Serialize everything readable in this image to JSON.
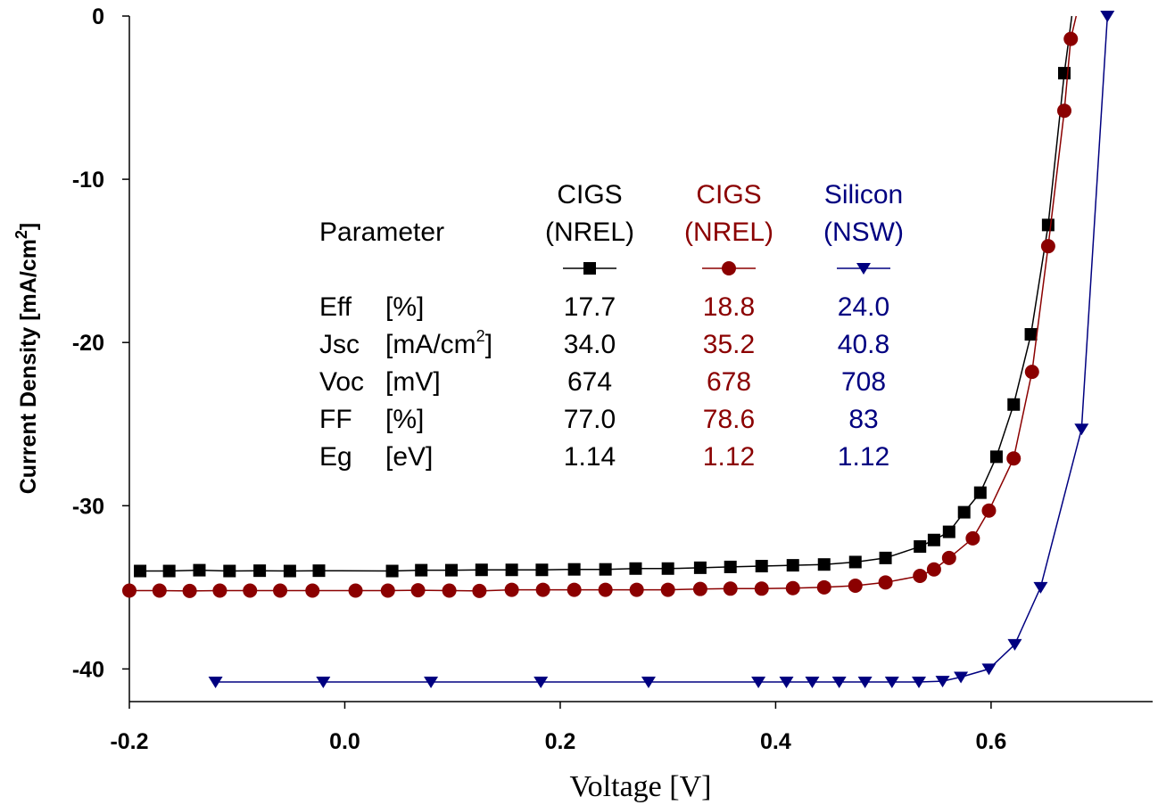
{
  "chart_data": {
    "type": "line",
    "title": "",
    "xlabel": "Voltage [V]",
    "ylabel_main": "Current Density [mA/cm",
    "ylabel_sup": "2",
    "ylabel_end": "]",
    "xlim": [
      -0.2,
      0.75
    ],
    "ylim": [
      -42,
      0
    ],
    "x_ticks": [
      -0.2,
      0.0,
      0.2,
      0.4,
      0.6
    ],
    "x_tick_labels": [
      "-0.2",
      "0.0",
      "0.2",
      "0.4",
      "0.6"
    ],
    "y_ticks": [
      0,
      -10,
      -20,
      -30,
      -40
    ],
    "y_tick_labels": [
      "0",
      "-10",
      "-20",
      "-30",
      "-40"
    ],
    "grid": false,
    "series": [
      {
        "color": "#000000",
        "marker": "square",
        "x": [
          -0.19,
          -0.163,
          -0.135,
          -0.107,
          -0.079,
          -0.051,
          -0.024,
          0.044,
          0.071,
          0.099,
          0.127,
          0.155,
          0.183,
          0.213,
          0.242,
          0.27,
          0.3,
          0.33,
          0.358,
          0.387,
          0.416,
          0.445,
          0.474,
          0.502,
          0.534,
          0.547,
          0.561,
          0.575,
          0.59,
          0.605,
          0.621,
          0.637,
          0.653,
          0.668,
          0.675
        ],
        "y": [
          -34.0,
          -34.0,
          -33.95,
          -34.0,
          -33.98,
          -34.0,
          -33.98,
          -34.0,
          -33.95,
          -33.95,
          -33.93,
          -33.93,
          -33.93,
          -33.9,
          -33.9,
          -33.85,
          -33.85,
          -33.8,
          -33.75,
          -33.7,
          -33.65,
          -33.6,
          -33.45,
          -33.2,
          -32.5,
          -32.1,
          -31.6,
          -30.4,
          -29.2,
          -27.0,
          -23.8,
          -19.5,
          -12.8,
          -3.5,
          0
        ]
      },
      {
        "color": "#8b0000",
        "marker": "circle",
        "x": [
          -0.2,
          -0.172,
          -0.144,
          -0.116,
          -0.088,
          -0.06,
          -0.03,
          0.01,
          0.04,
          0.068,
          0.097,
          0.125,
          0.155,
          0.184,
          0.213,
          0.242,
          0.271,
          0.3,
          0.33,
          0.358,
          0.387,
          0.416,
          0.445,
          0.474,
          0.502,
          0.534,
          0.547,
          0.561,
          0.583,
          0.598,
          0.621,
          0.638,
          0.653,
          0.668,
          0.674,
          0.679
        ],
        "y": [
          -35.2,
          -35.2,
          -35.22,
          -35.2,
          -35.2,
          -35.2,
          -35.2,
          -35.2,
          -35.2,
          -35.18,
          -35.2,
          -35.22,
          -35.15,
          -35.15,
          -35.15,
          -35.15,
          -35.15,
          -35.15,
          -35.1,
          -35.08,
          -35.08,
          -35.05,
          -35.0,
          -34.9,
          -34.7,
          -34.3,
          -33.9,
          -33.2,
          -32.0,
          -30.3,
          -27.1,
          -21.8,
          -14.1,
          -5.8,
          -1.4,
          0
        ]
      },
      {
        "color": "#000080",
        "marker": "triangle-down",
        "x": [
          -0.12,
          -0.02,
          0.08,
          0.182,
          0.282,
          0.384,
          0.41,
          0.434,
          0.459,
          0.483,
          0.508,
          0.533,
          0.555,
          0.572,
          0.598,
          0.622,
          0.646,
          0.684,
          0.708
        ],
        "y": [
          -40.8,
          -40.8,
          -40.8,
          -40.8,
          -40.8,
          -40.8,
          -40.8,
          -40.8,
          -40.8,
          -40.8,
          -40.8,
          -40.8,
          -40.75,
          -40.5,
          -40.0,
          -38.5,
          -35.0,
          -25.3,
          0
        ]
      }
    ],
    "legend_table": {
      "param_header": "Parameter",
      "columns": [
        {
          "line1": "CIGS",
          "line2": "(NREL)",
          "color": "#000000",
          "marker": "square",
          "values": [
            "17.7",
            "34.0",
            "674",
            "77.0",
            "1.14"
          ]
        },
        {
          "line1": "CIGS",
          "line2": "(NREL)",
          "color": "#8b0000",
          "marker": "circle",
          "values": [
            "18.8",
            "35.2",
            "678",
            "78.6",
            "1.12"
          ]
        },
        {
          "line1": "Silicon",
          "line2": "(NSW)",
          "color": "#000080",
          "marker": "triangle-down",
          "values": [
            "24.0",
            "40.8",
            "708",
            "83",
            "1.12"
          ]
        }
      ],
      "rows": [
        {
          "name": "Eff",
          "unit": "[%]",
          "unit_main": "",
          "unit_sup": "",
          "unit_end": ""
        },
        {
          "name": "Jsc",
          "unit": "",
          "unit_main": "[mA/cm",
          "unit_sup": "2",
          "unit_end": "]"
        },
        {
          "name": "Voc",
          "unit": "[mV]",
          "unit_main": "",
          "unit_sup": "",
          "unit_end": ""
        },
        {
          "name": "FF",
          "unit": "[%]",
          "unit_main": "",
          "unit_sup": "",
          "unit_end": ""
        },
        {
          "name": "Eg",
          "unit": "[eV]",
          "unit_main": "",
          "unit_sup": "",
          "unit_end": ""
        }
      ]
    }
  }
}
